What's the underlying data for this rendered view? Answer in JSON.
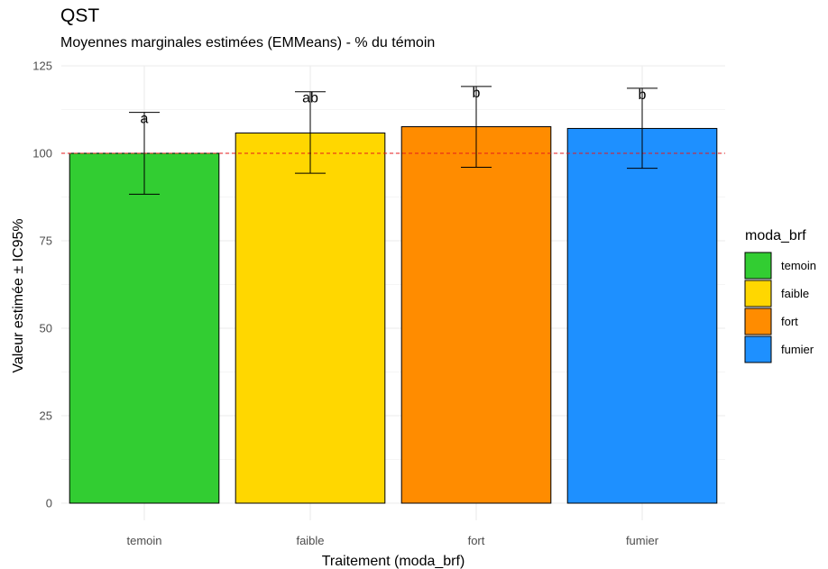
{
  "chart_data": {
    "type": "bar",
    "title": "QST",
    "subtitle": "Moyennes marginales estimées (EMMeans) - % du témoin",
    "xlabel": "Traitement (moda_brf)",
    "ylabel": "Valeur estimée ± IC95%",
    "ylim": [
      0,
      125
    ],
    "yticks": [
      0,
      25,
      50,
      75,
      100,
      125
    ],
    "categories": [
      "temoin",
      "faible",
      "fort",
      "fumier"
    ],
    "values": [
      100,
      105.8,
      107.6,
      107.1
    ],
    "ci_lower": [
      88.3,
      94.3,
      96.0,
      95.7
    ],
    "ci_upper": [
      111.7,
      117.6,
      119.1,
      118.6
    ],
    "significance_labels": [
      "a",
      "ab",
      "b",
      "b"
    ],
    "colors": [
      "#32CD32",
      "#FFD700",
      "#FF8C00",
      "#1E90FF"
    ],
    "reference_line": {
      "y": 100,
      "color": "#e41a1c",
      "style": "dashed"
    },
    "legend": {
      "title": "moda_brf",
      "position": "right",
      "entries": [
        "temoin",
        "faible",
        "fort",
        "fumier"
      ]
    },
    "grid": true
  }
}
